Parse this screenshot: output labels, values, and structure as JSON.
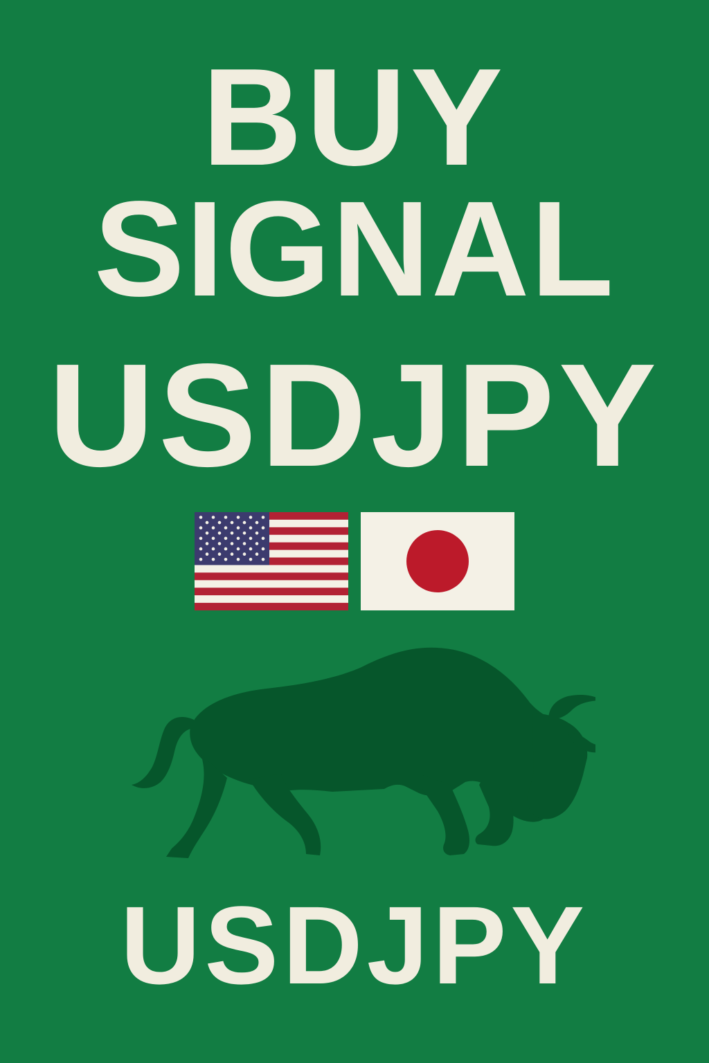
{
  "poster": {
    "headline_line1": "BUY",
    "headline_line2": "SIGNAL",
    "pair_label": "USDJPY",
    "footer_pair_label": "USDJPY"
  },
  "flags": [
    {
      "country": "United States",
      "icon": "us-flag-icon"
    },
    {
      "country": "Japan",
      "icon": "japan-flag-icon"
    }
  ],
  "illustration": {
    "icon": "bull-icon"
  },
  "colors": {
    "background": "#127d43",
    "text": "#f1eddf",
    "bull": "#06562b",
    "us_red": "#b22234",
    "us_blue": "#3c3b6e",
    "jp_red": "#bc1a2a",
    "flag_white": "#f4f1e6"
  }
}
